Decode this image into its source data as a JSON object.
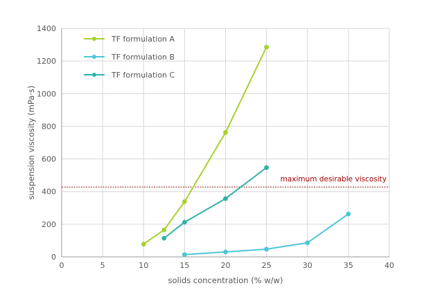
{
  "chart_data": {
    "type": "line",
    "title": "",
    "xlabel": "solids concentration (% w/w)",
    "ylabel": "suspension viscosity (mPa·s)",
    "xlim": [
      0,
      40
    ],
    "ylim": [
      0,
      1400
    ],
    "xticks": [
      0,
      5,
      10,
      15,
      20,
      25,
      30,
      35,
      40
    ],
    "yticks": [
      0,
      200,
      400,
      600,
      800,
      1000,
      1200,
      1400
    ],
    "grid": true,
    "legend_position": "top-left",
    "series": [
      {
        "name": "TF formulation A",
        "color": "#a6d12e",
        "x": [
          10,
          12.5,
          15,
          20,
          25
        ],
        "y": [
          78,
          165,
          338,
          762,
          1285
        ]
      },
      {
        "name": "TF formulation B",
        "color": "#4cc6d6",
        "x": [
          15,
          20,
          25,
          30,
          35
        ],
        "y": [
          14,
          30,
          47,
          86,
          263
        ]
      },
      {
        "name": "TF formulation C",
        "color": "#2fb3a6",
        "x": [
          12.5,
          15,
          20,
          25
        ],
        "y": [
          114,
          212,
          357,
          547
        ]
      }
    ],
    "reference_line": {
      "label": "maximum desirable viscosity",
      "y": 428,
      "color": "#8b1a1a"
    }
  }
}
